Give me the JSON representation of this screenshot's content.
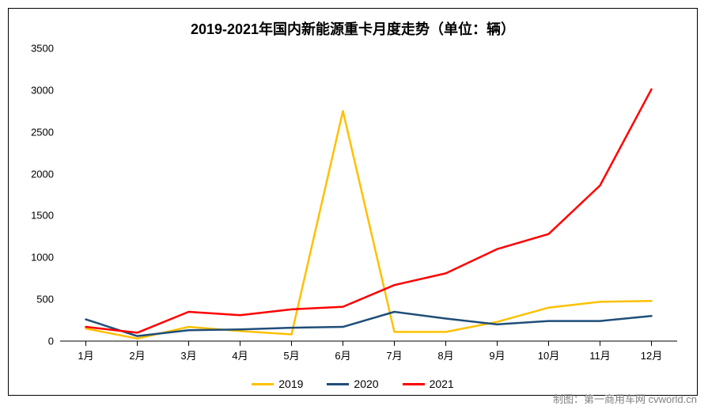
{
  "chart": {
    "type": "line",
    "title": "2019-2021年国内新能源重卡月度走势（单位：辆）",
    "title_fontsize": 18,
    "title_fontweight": "bold",
    "background_color": "#ffffff",
    "border_color": "#000000",
    "categories": [
      "1月",
      "2月",
      "3月",
      "4月",
      "5月",
      "6月",
      "7月",
      "8月",
      "9月",
      "10月",
      "11月",
      "12月"
    ],
    "x_tick_fontsize": 13,
    "x_tick_mark_length": 6,
    "x_tick_color": "#000000",
    "ylim": [
      0,
      3500
    ],
    "ytick_step": 500,
    "y_tick_fontsize": 13,
    "y_tick_color": "#000000",
    "axis_line_color": "#000000",
    "axis_line_width": 1,
    "grid": false,
    "series": [
      {
        "name": "2019",
        "color": "#ffc000",
        "line_width": 2.5,
        "marker": "none",
        "values": [
          150,
          30,
          170,
          120,
          80,
          2750,
          110,
          110,
          230,
          400,
          470,
          480
        ]
      },
      {
        "name": "2020",
        "color": "#1f4e79",
        "line_width": 2.5,
        "marker": "none",
        "values": [
          260,
          60,
          130,
          140,
          160,
          170,
          350,
          270,
          200,
          240,
          240,
          300
        ]
      },
      {
        "name": "2021",
        "color": "#ff0000",
        "line_width": 2.5,
        "marker": "none",
        "values": [
          170,
          100,
          350,
          310,
          380,
          410,
          670,
          810,
          1100,
          1280,
          1860,
          3010
        ]
      }
    ],
    "legend": {
      "position": "bottom",
      "fontsize": 14,
      "swatch_width": 28,
      "swatch_height": 3,
      "gap": 30
    }
  },
  "attribution": "制图：第一商用车网 cvworld.cn",
  "attribution_color": "#808080",
  "attribution_fontsize": 13
}
